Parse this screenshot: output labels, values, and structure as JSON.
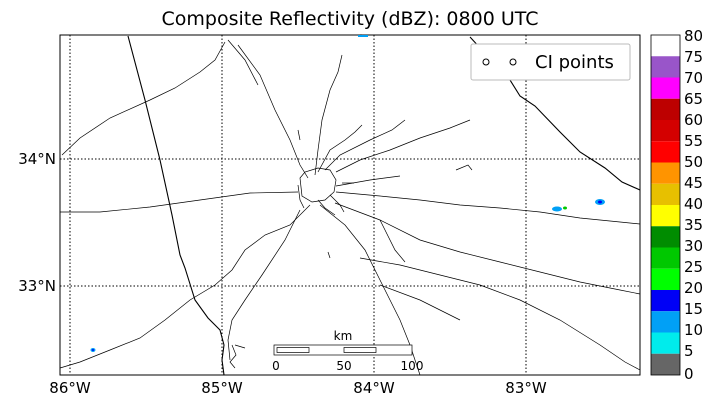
{
  "title": "Composite Reflectivity (dBZ): 0800 UTC",
  "map": {
    "lon_labels": [
      "86°W",
      "85°W",
      "84°W",
      "83°W"
    ],
    "lat_labels": [
      "34°N",
      "33°N"
    ],
    "legend_label": "CI points",
    "scale_bar": {
      "unit": "km",
      "ticks": [
        "0",
        "50",
        "100"
      ]
    }
  },
  "colorbar": {
    "tick_labels": [
      "80",
      "75",
      "70",
      "65",
      "60",
      "55",
      "50",
      "45",
      "40",
      "35",
      "30",
      "25",
      "20",
      "15",
      "10",
      "5",
      "0"
    ],
    "bins": [
      {
        "color": "#ffffff"
      },
      {
        "color": "#9955c9"
      },
      {
        "color": "#ff00ff"
      },
      {
        "color": "#bd0000"
      },
      {
        "color": "#d40000"
      },
      {
        "color": "#ff0000"
      },
      {
        "color": "#ff9400"
      },
      {
        "color": "#e7c000"
      },
      {
        "color": "#ffff00"
      },
      {
        "color": "#008c00"
      },
      {
        "color": "#00c800"
      },
      {
        "color": "#00ff00"
      },
      {
        "color": "#0000f6"
      },
      {
        "color": "#01a0f6"
      },
      {
        "color": "#00ecec"
      },
      {
        "color": "#666666"
      }
    ]
  }
}
